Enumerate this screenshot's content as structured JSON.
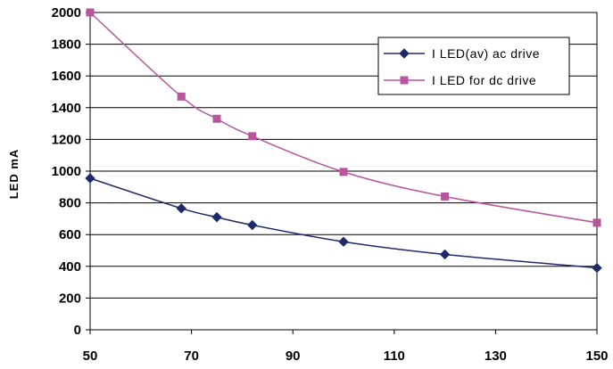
{
  "chart_data": {
    "type": "line",
    "title": "",
    "xlabel": "",
    "ylabel": "LED mA",
    "xlim": [
      50,
      150
    ],
    "ylim": [
      0,
      2000
    ],
    "xticks": [
      50,
      70,
      90,
      110,
      130,
      150
    ],
    "yticks": [
      0,
      200,
      400,
      600,
      800,
      1000,
      1200,
      1400,
      1600,
      1800,
      2000
    ],
    "grid": "horizontal",
    "legend_position": "top-right",
    "series": [
      {
        "name": "I LED(av) ac drive",
        "color": "#1f2a6b",
        "marker": "diamond",
        "x": [
          50,
          68,
          75,
          82,
          100,
          120,
          150
        ],
        "y": [
          955,
          765,
          710,
          660,
          555,
          475,
          390
        ]
      },
      {
        "name": "I LED for dc drive",
        "color": "#b7559d",
        "marker": "square",
        "x": [
          50,
          68,
          75,
          82,
          100,
          120,
          150
        ],
        "y": [
          2000,
          1470,
          1330,
          1220,
          995,
          840,
          675
        ]
      }
    ]
  }
}
